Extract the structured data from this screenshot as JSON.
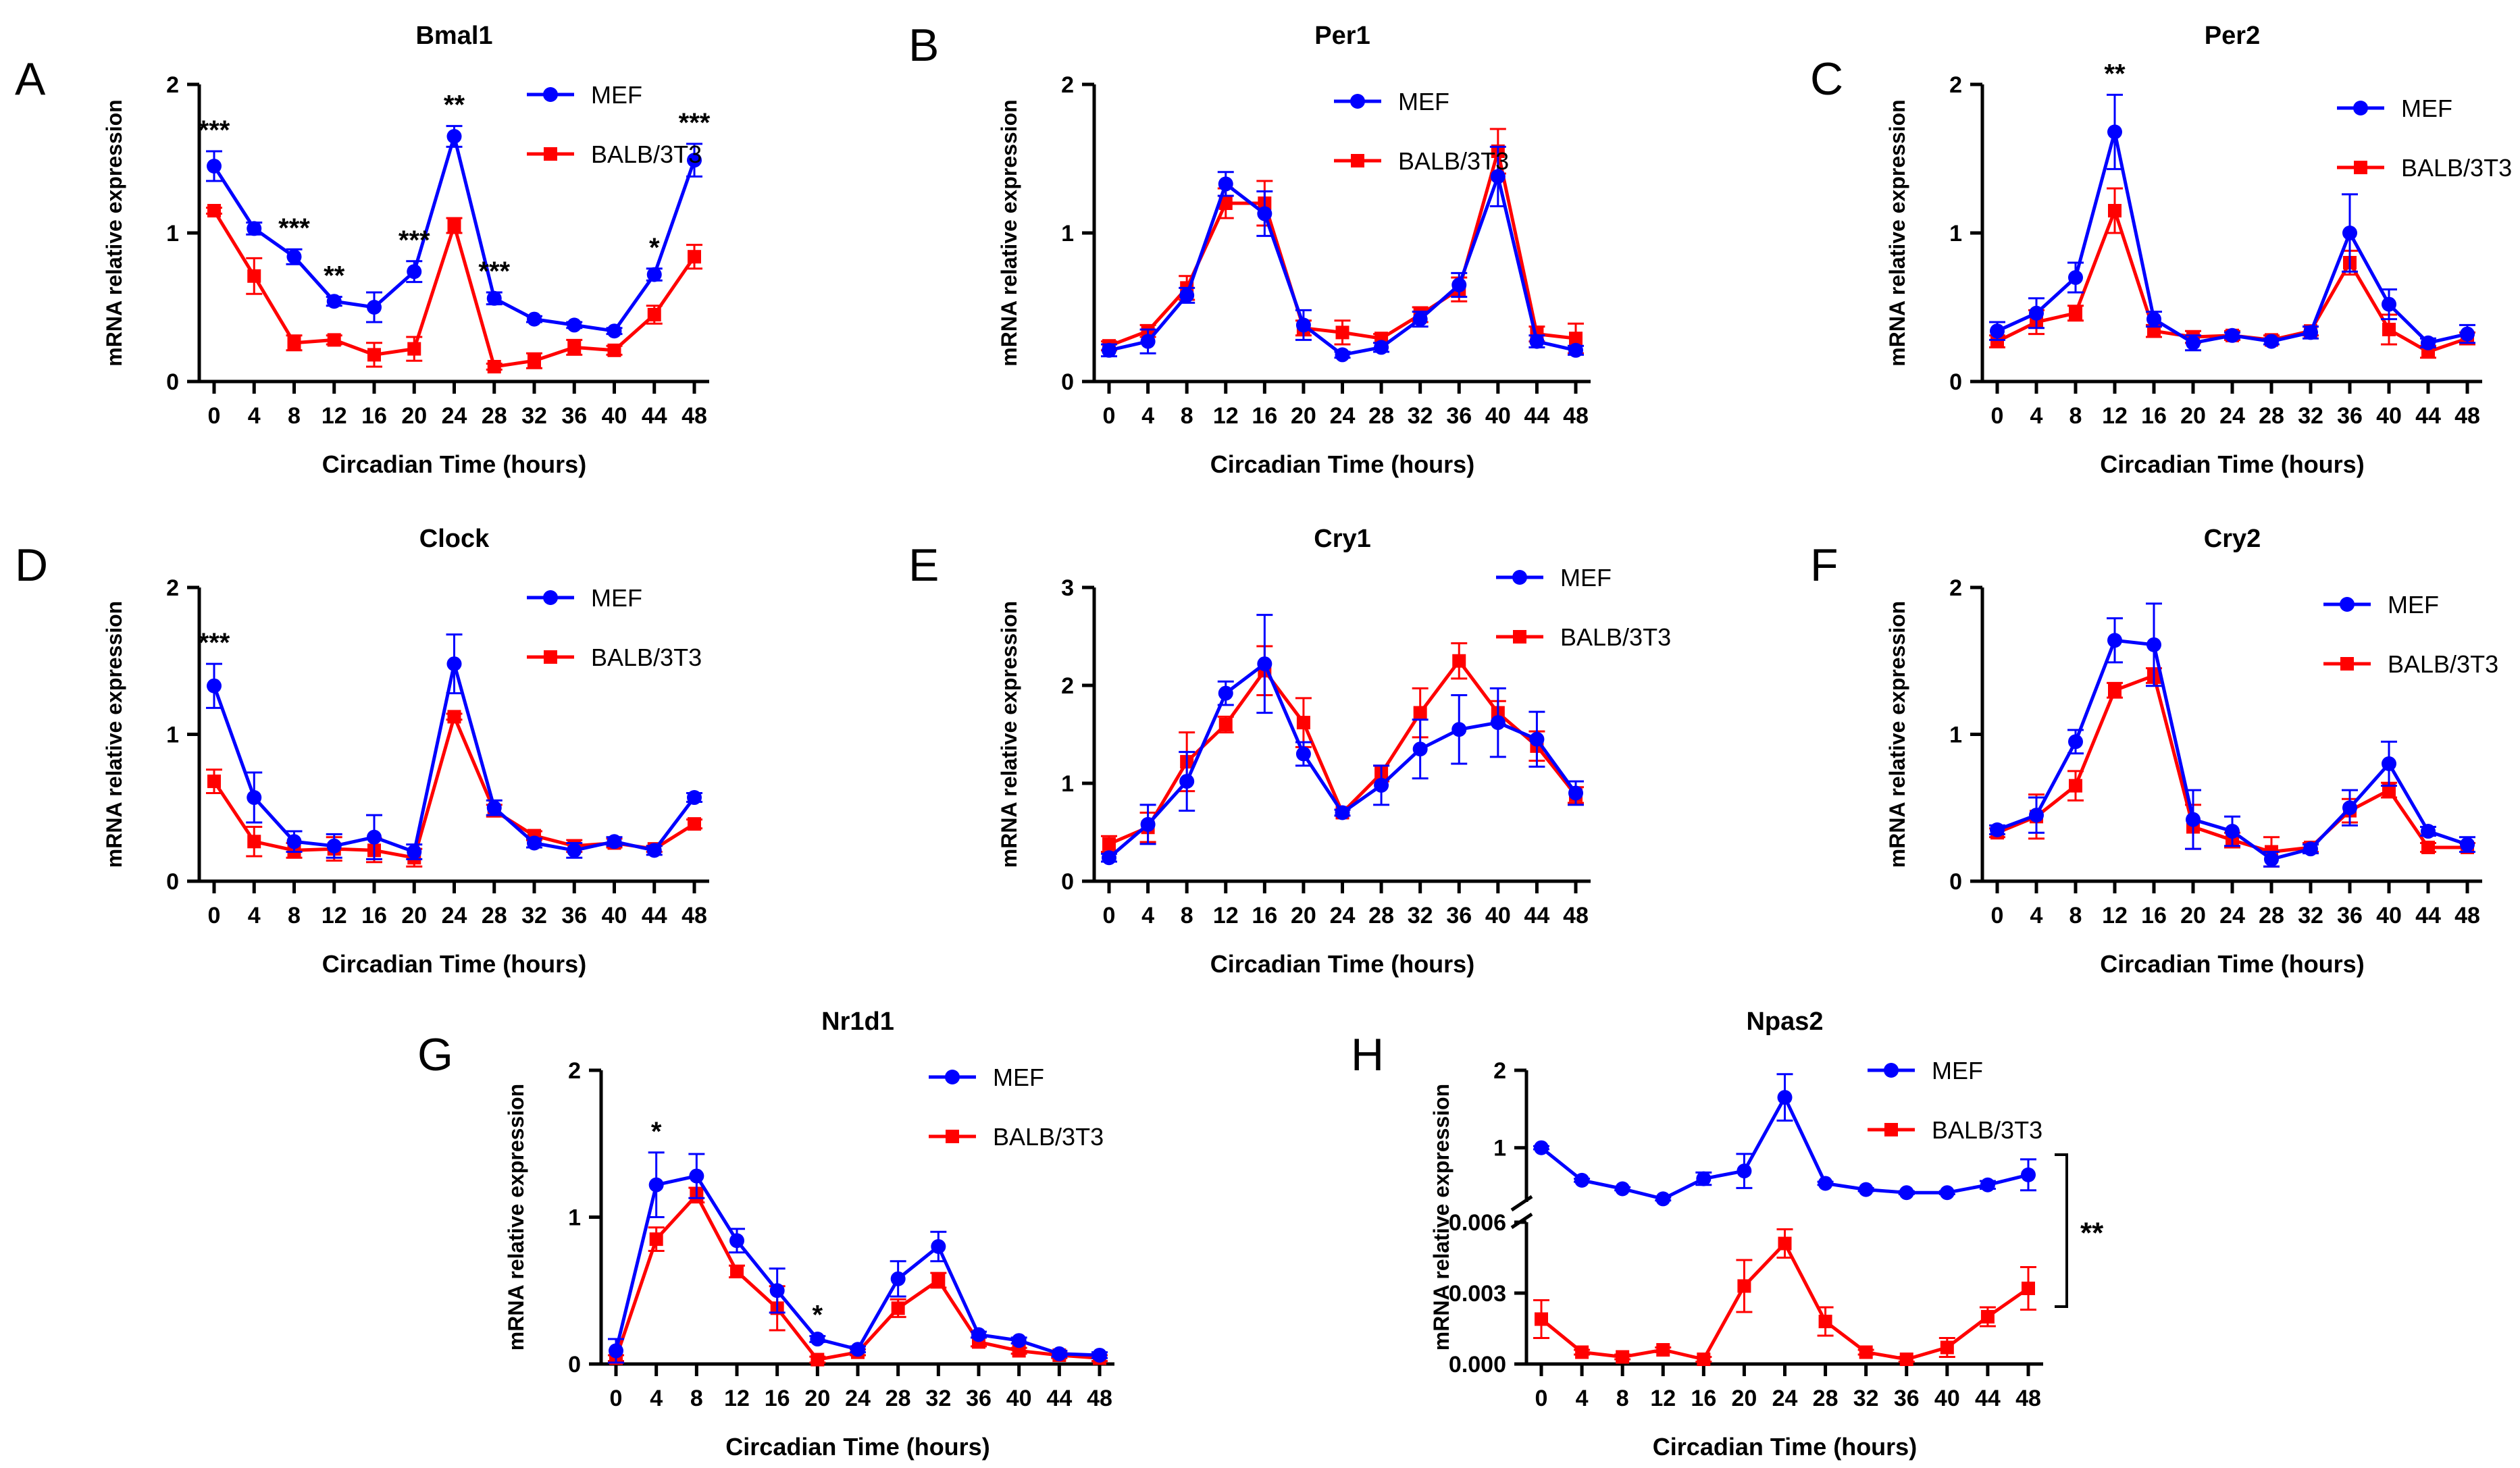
{
  "figure": {
    "colors": {
      "mef": "#0000ff",
      "balb": "#ff0000",
      "axis": "#000000"
    }
  },
  "chart_data": [
    {
      "letter": "A",
      "type": "line",
      "title": "Bmal1",
      "xlabel": "Circadian Time (hours)",
      "ylabel": "mRNA relative expression",
      "x": [
        0,
        4,
        8,
        12,
        16,
        20,
        24,
        28,
        32,
        36,
        40,
        44,
        48
      ],
      "ylim": [
        0,
        2
      ],
      "yticks": [
        0,
        1,
        2
      ],
      "series": [
        {
          "name": "MEF",
          "color": "#0000ff",
          "marker": "circle",
          "values": [
            1.45,
            1.03,
            0.84,
            0.54,
            0.5,
            0.74,
            1.65,
            0.56,
            0.42,
            0.38,
            0.34,
            0.72,
            1.49
          ],
          "errors": [
            0.1,
            0.04,
            0.05,
            0.03,
            0.1,
            0.07,
            0.07,
            0.04,
            0.02,
            0.02,
            0.02,
            0.04,
            0.11
          ]
        },
        {
          "name": "BALB/3T3",
          "color": "#ff0000",
          "marker": "square",
          "values": [
            1.15,
            0.71,
            0.26,
            0.28,
            0.18,
            0.22,
            1.05,
            0.1,
            0.14,
            0.23,
            0.21,
            0.45,
            0.84
          ],
          "errors": [
            0.02,
            0.12,
            0.05,
            0.03,
            0.08,
            0.08,
            0.05,
            0.02,
            0.05,
            0.05,
            0.03,
            0.06,
            0.08
          ]
        }
      ],
      "annotations": [
        {
          "x": 0,
          "label": "***"
        },
        {
          "x": 8,
          "label": "***"
        },
        {
          "x": 12,
          "label": "**"
        },
        {
          "x": 20,
          "label": "***"
        },
        {
          "x": 24,
          "label": "**"
        },
        {
          "x": 28,
          "label": "***"
        },
        {
          "x": 44,
          "label": "*"
        },
        {
          "x": 48,
          "label": "***"
        }
      ]
    },
    {
      "letter": "B",
      "type": "line",
      "title": "Per1",
      "xlabel": "Circadian Time (hours)",
      "ylabel": "mRNA relative expression",
      "x": [
        0,
        4,
        8,
        12,
        16,
        20,
        24,
        28,
        32,
        36,
        40,
        44,
        48
      ],
      "ylim": [
        0,
        2
      ],
      "yticks": [
        0,
        1,
        2
      ],
      "series": [
        {
          "name": "MEF",
          "color": "#0000ff",
          "marker": "circle",
          "values": [
            0.21,
            0.27,
            0.58,
            1.33,
            1.13,
            0.38,
            0.18,
            0.23,
            0.42,
            0.65,
            1.38,
            0.27,
            0.21
          ],
          "errors": [
            0.04,
            0.08,
            0.05,
            0.08,
            0.15,
            0.1,
            0.02,
            0.03,
            0.05,
            0.08,
            0.2,
            0.04,
            0.03
          ]
        },
        {
          "name": "BALB/3T3",
          "color": "#ff0000",
          "marker": "square",
          "values": [
            0.24,
            0.34,
            0.63,
            1.2,
            1.2,
            0.36,
            0.33,
            0.29,
            0.45,
            0.62,
            1.55,
            0.32,
            0.29
          ],
          "errors": [
            0.03,
            0.04,
            0.08,
            0.1,
            0.15,
            0.05,
            0.08,
            0.03,
            0.05,
            0.08,
            0.15,
            0.05,
            0.1
          ]
        }
      ],
      "annotations": []
    },
    {
      "letter": "C",
      "type": "line",
      "title": "Per2",
      "xlabel": "Circadian Time (hours)",
      "ylabel": "mRNA relative expression",
      "x": [
        0,
        4,
        8,
        12,
        16,
        20,
        24,
        28,
        32,
        36,
        40,
        44,
        48
      ],
      "ylim": [
        0,
        2
      ],
      "yticks": [
        0,
        1,
        2
      ],
      "series": [
        {
          "name": "MEF",
          "color": "#0000ff",
          "marker": "circle",
          "values": [
            0.34,
            0.46,
            0.7,
            1.68,
            0.42,
            0.26,
            0.31,
            0.27,
            0.33,
            1.0,
            0.52,
            0.26,
            0.32
          ],
          "errors": [
            0.06,
            0.1,
            0.1,
            0.25,
            0.05,
            0.05,
            0.02,
            0.02,
            0.04,
            0.26,
            0.1,
            0.03,
            0.06
          ]
        },
        {
          "name": "BALB/3T3",
          "color": "#ff0000",
          "marker": "square",
          "values": [
            0.27,
            0.4,
            0.46,
            1.15,
            0.34,
            0.3,
            0.31,
            0.28,
            0.34,
            0.8,
            0.35,
            0.2,
            0.29
          ],
          "errors": [
            0.04,
            0.08,
            0.05,
            0.15,
            0.04,
            0.04,
            0.03,
            0.03,
            0.03,
            0.08,
            0.1,
            0.04,
            0.04
          ]
        }
      ],
      "annotations": [
        {
          "x": 12,
          "label": "**"
        }
      ]
    },
    {
      "letter": "D",
      "type": "line",
      "title": "Clock",
      "xlabel": "Circadian Time (hours)",
      "ylabel": "mRNA relative expression",
      "x": [
        0,
        4,
        8,
        12,
        16,
        20,
        24,
        28,
        32,
        36,
        40,
        44,
        48
      ],
      "ylim": [
        0,
        2
      ],
      "yticks": [
        0,
        1,
        2
      ],
      "series": [
        {
          "name": "MEF",
          "color": "#0000ff",
          "marker": "circle",
          "values": [
            1.33,
            0.57,
            0.27,
            0.24,
            0.3,
            0.2,
            1.48,
            0.5,
            0.26,
            0.21,
            0.27,
            0.21,
            0.57
          ],
          "errors": [
            0.15,
            0.17,
            0.07,
            0.08,
            0.15,
            0.05,
            0.2,
            0.05,
            0.03,
            0.05,
            0.03,
            0.03,
            0.03
          ]
        },
        {
          "name": "BALB/3T3",
          "color": "#ff0000",
          "marker": "square",
          "values": [
            0.68,
            0.27,
            0.21,
            0.22,
            0.21,
            0.16,
            1.12,
            0.48,
            0.31,
            0.24,
            0.26,
            0.22,
            0.39
          ],
          "errors": [
            0.08,
            0.1,
            0.05,
            0.08,
            0.08,
            0.06,
            0.02,
            0.04,
            0.03,
            0.04,
            0.03,
            0.02,
            0.03
          ]
        }
      ],
      "annotations": [
        {
          "x": 0,
          "label": "***"
        }
      ]
    },
    {
      "letter": "E",
      "type": "line",
      "title": "Cry1",
      "xlabel": "Circadian Time (hours)",
      "ylabel": "mRNA relative expression",
      "x": [
        0,
        4,
        8,
        12,
        16,
        20,
        24,
        28,
        32,
        36,
        40,
        44,
        48
      ],
      "ylim": [
        0,
        3
      ],
      "yticks": [
        0,
        1,
        2,
        3
      ],
      "series": [
        {
          "name": "MEF",
          "color": "#0000ff",
          "marker": "circle",
          "values": [
            0.24,
            0.58,
            1.02,
            1.92,
            2.22,
            1.3,
            0.7,
            0.98,
            1.35,
            1.55,
            1.62,
            1.45,
            0.9
          ],
          "errors": [
            0.04,
            0.2,
            0.3,
            0.12,
            0.5,
            0.12,
            0.03,
            0.2,
            0.3,
            0.35,
            0.35,
            0.28,
            0.12
          ]
        },
        {
          "name": "BALB/3T3",
          "color": "#ff0000",
          "marker": "square",
          "values": [
            0.38,
            0.55,
            1.22,
            1.6,
            2.15,
            1.62,
            0.7,
            1.1,
            1.72,
            2.25,
            1.72,
            1.38,
            0.88
          ],
          "errors": [
            0.08,
            0.15,
            0.3,
            0.08,
            0.25,
            0.25,
            0.03,
            0.08,
            0.25,
            0.18,
            0.12,
            0.15,
            0.08
          ]
        }
      ],
      "annotations": []
    },
    {
      "letter": "F",
      "type": "line",
      "title": "Cry2",
      "xlabel": "Circadian Time (hours)",
      "ylabel": "mRNA relative expression",
      "x": [
        0,
        4,
        8,
        12,
        16,
        20,
        24,
        28,
        32,
        36,
        40,
        44,
        48
      ],
      "ylim": [
        0,
        2
      ],
      "yticks": [
        0,
        1,
        2
      ],
      "series": [
        {
          "name": "MEF",
          "color": "#0000ff",
          "marker": "circle",
          "values": [
            0.35,
            0.45,
            0.95,
            1.64,
            1.61,
            0.42,
            0.34,
            0.15,
            0.22,
            0.5,
            0.8,
            0.34,
            0.25
          ],
          "errors": [
            0.03,
            0.12,
            0.08,
            0.15,
            0.28,
            0.2,
            0.1,
            0.05,
            0.03,
            0.12,
            0.15,
            0.03,
            0.05
          ]
        },
        {
          "name": "BALB/3T3",
          "color": "#ff0000",
          "marker": "square",
          "values": [
            0.33,
            0.44,
            0.65,
            1.3,
            1.4,
            0.37,
            0.28,
            0.2,
            0.23,
            0.48,
            0.62,
            0.23,
            0.23
          ],
          "errors": [
            0.03,
            0.15,
            0.1,
            0.05,
            0.05,
            0.15,
            0.05,
            0.1,
            0.03,
            0.08,
            0.05,
            0.03,
            0.03
          ]
        }
      ],
      "annotations": []
    },
    {
      "letter": "G",
      "type": "line",
      "title": "Nr1d1",
      "xlabel": "Circadian Time (hours)",
      "ylabel": "mRNA relative expression",
      "x": [
        0,
        4,
        8,
        12,
        16,
        20,
        24,
        28,
        32,
        36,
        40,
        44,
        48
      ],
      "ylim": [
        0,
        2
      ],
      "yticks": [
        0,
        1,
        2
      ],
      "series": [
        {
          "name": "MEF",
          "color": "#0000ff",
          "marker": "circle",
          "values": [
            0.09,
            1.22,
            1.28,
            0.84,
            0.5,
            0.17,
            0.1,
            0.58,
            0.8,
            0.2,
            0.16,
            0.07,
            0.06
          ],
          "errors": [
            0.08,
            0.22,
            0.15,
            0.08,
            0.15,
            0.02,
            0.02,
            0.12,
            0.1,
            0.02,
            0.02,
            0.02,
            0.02
          ]
        },
        {
          "name": "BALB/3T3",
          "color": "#ff0000",
          "marker": "square",
          "values": [
            0.04,
            0.85,
            1.15,
            0.63,
            0.38,
            0.03,
            0.08,
            0.38,
            0.57,
            0.15,
            0.09,
            0.06,
            0.04
          ],
          "errors": [
            0.02,
            0.08,
            0.05,
            0.04,
            0.15,
            0.02,
            0.02,
            0.06,
            0.05,
            0.03,
            0.02,
            0.02,
            0.02
          ]
        }
      ],
      "annotations": [
        {
          "x": 4,
          "label": "*"
        },
        {
          "x": 20,
          "label": "*"
        }
      ]
    },
    {
      "letter": "H",
      "type": "line",
      "title": "Npas2",
      "broken_axis": true,
      "xlabel": "Circadian Time (hours)",
      "ylabel": "mRNA relative expression",
      "x": [
        0,
        4,
        8,
        12,
        16,
        20,
        24,
        28,
        32,
        36,
        40,
        44,
        48
      ],
      "upper_ylim": [
        0.3,
        2
      ],
      "upper_yticks": [
        1,
        2
      ],
      "lower_ylim": [
        0,
        0.006
      ],
      "lower_yticks": [
        "0.000",
        "0.003",
        "0.006"
      ],
      "series": [
        {
          "name": "MEF",
          "color": "#0000ff",
          "marker": "circle",
          "segment": "upper",
          "values": [
            1.0,
            0.58,
            0.47,
            0.34,
            0.6,
            0.7,
            1.65,
            0.54,
            0.46,
            0.42,
            0.42,
            0.52,
            0.65
          ],
          "errors": [
            0.02,
            0.02,
            0.02,
            0.02,
            0.08,
            0.22,
            0.3,
            0.02,
            0.02,
            0.02,
            0.02,
            0.05,
            0.2
          ]
        },
        {
          "name": "BALB/3T3",
          "color": "#ff0000",
          "marker": "square",
          "segment": "lower",
          "values": [
            0.0019,
            0.0005,
            0.0003,
            0.0006,
            0.0002,
            0.0033,
            0.0051,
            0.0018,
            0.0005,
            0.0002,
            0.0007,
            0.002,
            0.0032
          ],
          "errors": [
            0.0008,
            0.0001,
            0.0001,
            0.0001,
            0.0001,
            0.0011,
            0.0006,
            0.0006,
            0.0001,
            0.0001,
            0.0004,
            0.0004,
            0.0009
          ]
        }
      ],
      "bracket_label": "**",
      "annotations": []
    }
  ]
}
